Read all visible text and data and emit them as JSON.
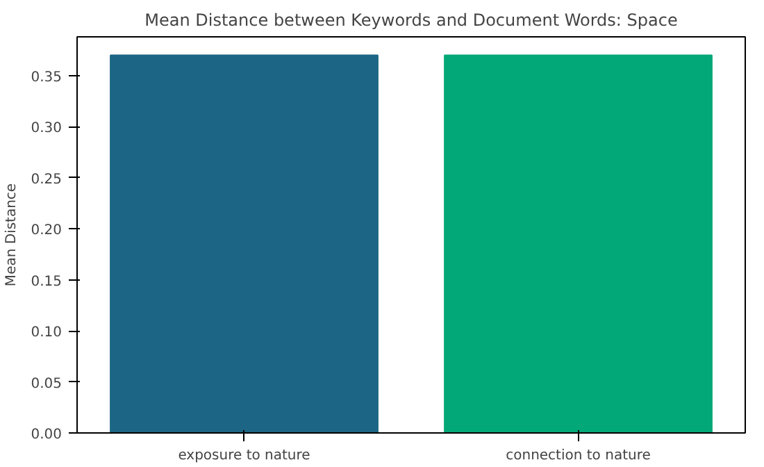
{
  "chart_data": {
    "type": "bar",
    "title": "Mean Distance between Keywords and Document Words: Space",
    "ylabel": "Mean Distance",
    "categories": [
      "exposure to nature",
      "connection to nature"
    ],
    "values": [
      0.37,
      0.37
    ],
    "colors": [
      "#1c6585",
      "#02a878"
    ],
    "ylim": [
      0,
      0.388
    ],
    "yticks": [
      {
        "value": 0,
        "label": "0.00"
      },
      {
        "value": 0.05,
        "label": "0.05"
      },
      {
        "value": 0.1,
        "label": "0.10"
      },
      {
        "value": 0.15,
        "label": "0.15"
      },
      {
        "value": 0.2,
        "label": "0.20"
      },
      {
        "value": 0.25,
        "label": "0.25"
      },
      {
        "value": 0.3,
        "label": "0.30"
      },
      {
        "value": 0.35,
        "label": "0.35"
      }
    ],
    "grid": false
  }
}
